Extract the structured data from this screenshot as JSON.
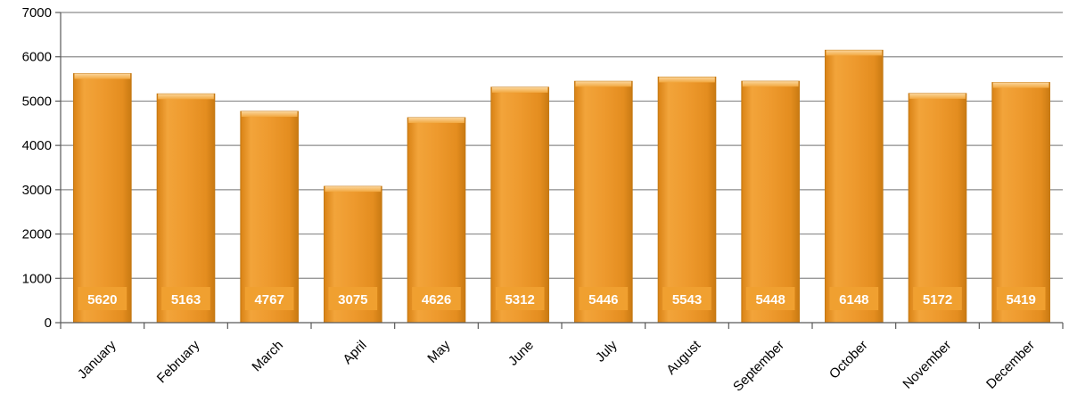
{
  "chart_data": {
    "type": "bar",
    "categories": [
      "January",
      "February",
      "March",
      "April",
      "May",
      "June",
      "July",
      "August",
      "September",
      "October",
      "November",
      "December"
    ],
    "values": [
      5620,
      5163,
      4767,
      3075,
      4626,
      5312,
      5446,
      5543,
      5448,
      6148,
      5172,
      5419
    ],
    "ylim": [
      0,
      7000
    ],
    "yticks": [
      0,
      1000,
      2000,
      3000,
      4000,
      5000,
      6000,
      7000
    ],
    "grid": true,
    "data_labels": true,
    "colors": {
      "bar_fill": "#EE9A2E",
      "bar_highlight": "#F8C77A",
      "bar_edge": "#C47812",
      "label_bg": "#F0A030",
      "grid": "#8C8C8C",
      "axis": "#595959"
    }
  }
}
